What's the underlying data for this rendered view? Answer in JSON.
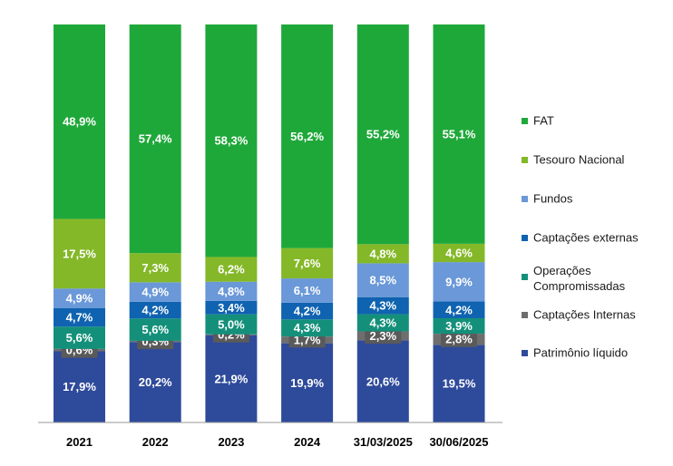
{
  "chart_data": {
    "type": "bar",
    "stacked": true,
    "percent": true,
    "categories": [
      "2021",
      "2022",
      "2023",
      "2024",
      "31/03/2025",
      "30/06/2025"
    ],
    "series": [
      {
        "name": "Patrimônio líquido",
        "color": "#2e4a9a",
        "values": [
          17.9,
          20.2,
          21.9,
          19.9,
          20.6,
          19.5
        ],
        "labels": [
          "17,9%",
          "20,2%",
          "21,9%",
          "19,9%",
          "20,6%",
          "19,5%"
        ]
      },
      {
        "name": "Captações Internas",
        "color": "#6e6e6e",
        "values": [
          0.6,
          0.3,
          0.2,
          1.7,
          2.3,
          2.8
        ],
        "labels": [
          "0,6%",
          "0,3%",
          "0,2%",
          "1,7%",
          "2,3%",
          "2,8%"
        ]
      },
      {
        "name": "Operações Compromissadas",
        "color": "#14907a",
        "values": [
          5.6,
          5.6,
          5.0,
          4.3,
          4.3,
          3.9
        ],
        "labels": [
          "5,6%",
          "5,6%",
          "5,0%",
          "4,3%",
          "4,3%",
          "3,9%"
        ]
      },
      {
        "name": "Captações externas",
        "color": "#0f63b0",
        "values": [
          4.7,
          4.2,
          3.4,
          4.2,
          4.3,
          4.2
        ],
        "labels": [
          "4,7%",
          "4,2%",
          "3,4%",
          "4,2%",
          "4,3%",
          "4,2%"
        ]
      },
      {
        "name": "Fundos",
        "color": "#6a98d8",
        "values": [
          4.9,
          4.9,
          4.8,
          6.1,
          8.5,
          9.9
        ],
        "labels": [
          "4,9%",
          "4,9%",
          "4,8%",
          "6,1%",
          "8,5%",
          "9,9%"
        ]
      },
      {
        "name": "Tesouro Nacional",
        "color": "#84b828",
        "values": [
          17.5,
          7.3,
          6.2,
          7.6,
          4.8,
          4.6
        ],
        "labels": [
          "17,5%",
          "7,3%",
          "6,2%",
          "7,6%",
          "4,8%",
          "4,6%"
        ]
      },
      {
        "name": "FAT",
        "color": "#1fa83a",
        "values": [
          48.9,
          57.4,
          58.3,
          56.2,
          55.2,
          55.1
        ],
        "labels": [
          "48,9%",
          "57,4%",
          "58,3%",
          "56,2%",
          "55,2%",
          "55,1%"
        ]
      }
    ],
    "legend_order": [
      "FAT",
      "Tesouro Nacional",
      "Fundos",
      "Captações externas",
      "Operações Compromissadas",
      "Captações Internas",
      "Patrimônio líquido"
    ],
    "legend_position": "right",
    "label_box_series": [
      "Captações Internas"
    ],
    "label_box_color": "#5a5a5a",
    "grid": false
  }
}
